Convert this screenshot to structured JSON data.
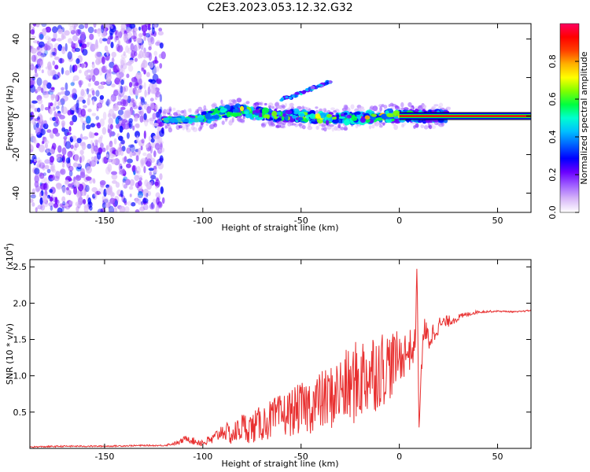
{
  "title": "C2E3.2023.053.12.32.G32",
  "colorbar": {
    "label": "Normalized spectral amplitude",
    "ticks": [
      0.0,
      0.2,
      0.4,
      0.6,
      0.8
    ],
    "range": [
      0,
      1
    ],
    "colormap": [
      "#ffffff",
      "#d8b8f8",
      "#a060ff",
      "#6a00ff",
      "#0000ff",
      "#0060ff",
      "#00c0ff",
      "#00ffd0",
      "#00ff40",
      "#80ff00",
      "#ffff00",
      "#ffb000",
      "#ff4000",
      "#ff0000",
      "#ff0060"
    ]
  },
  "chart_data": [
    {
      "type": "heatmap",
      "title": "",
      "xlabel": "Height of straight line (km)",
      "ylabel": "Frequency (Hz)",
      "xlim": [
        -188,
        67
      ],
      "ylim": [
        -50,
        48
      ],
      "xticks": [
        -150,
        -100,
        -50,
        0,
        50
      ],
      "yticks": [
        -40,
        -20,
        0,
        20,
        40
      ],
      "noise_region_x": [
        -188,
        -120
      ],
      "ridge": {
        "x": [
          -120,
          -110,
          -100,
          -90,
          -80,
          -70,
          -60,
          -50,
          -40,
          -30,
          -20,
          -10,
          0,
          10,
          20,
          30,
          40,
          50,
          60,
          67
        ],
        "y": [
          -2,
          -2,
          -1,
          2,
          3,
          1,
          0,
          0,
          -1,
          -1,
          -1,
          0,
          0,
          0,
          0,
          0,
          0,
          0,
          0,
          0
        ]
      },
      "secondary_branch": {
        "x": [
          -60,
          -55,
          -50,
          -45,
          -40,
          -35
        ],
        "y": [
          9,
          10,
          12,
          14,
          16,
          18
        ]
      },
      "steady_line_x": [
        0,
        67
      ],
      "steady_line_freq": 0
    },
    {
      "type": "line",
      "title": "",
      "xlabel": "Height of straight line (km)",
      "ylabel": "SNR (10 * v/v)",
      "scale_label": "(x10",
      "scale_exp": "4",
      "xlim": [
        -188,
        67
      ],
      "ylim": [
        0,
        2.6
      ],
      "xticks": [
        -150,
        -100,
        -50,
        0,
        50
      ],
      "yticks": [
        0.5,
        1.0,
        1.5,
        2.0,
        2.5
      ],
      "color": "#e83030",
      "series": [
        {
          "x": [
            -188,
            -170,
            -150,
            -130,
            -120,
            -112,
            -108,
            -105,
            -100,
            -95,
            -90,
            -85,
            -80,
            -75,
            -70,
            -65,
            -60,
            -55,
            -50,
            -45,
            -40,
            -35,
            -30,
            -25,
            -20,
            -15,
            -10,
            -5,
            0,
            5,
            8,
            9,
            10,
            12,
            15,
            20,
            25,
            30,
            35,
            40,
            50,
            60,
            67
          ],
          "y": [
            0.02,
            0.03,
            0.03,
            0.04,
            0.04,
            0.08,
            0.15,
            0.1,
            0.08,
            0.12,
            0.25,
            0.18,
            0.3,
            0.28,
            0.35,
            0.4,
            0.45,
            0.5,
            0.55,
            0.6,
            0.65,
            0.7,
            0.8,
            0.85,
            0.95,
            1.05,
            1.1,
            1.15,
            1.25,
            1.35,
            1.4,
            2.55,
            0.25,
            1.6,
            1.5,
            1.7,
            1.75,
            1.8,
            1.85,
            1.88,
            1.89,
            1.88,
            1.9
          ],
          "noise_amplitude": [
            0.01,
            0.01,
            0.01,
            0.01,
            0.01,
            0.03,
            0.05,
            0.05,
            0.06,
            0.08,
            0.12,
            0.15,
            0.2,
            0.22,
            0.25,
            0.28,
            0.3,
            0.33,
            0.35,
            0.4,
            0.42,
            0.45,
            0.5,
            0.55,
            0.6,
            0.6,
            0.55,
            0.5,
            0.35,
            0.3,
            0.25,
            0.0,
            0.0,
            0.25,
            0.2,
            0.12,
            0.08,
            0.05,
            0.03,
            0.02,
            0.01,
            0.01,
            0.01
          ]
        }
      ]
    }
  ]
}
